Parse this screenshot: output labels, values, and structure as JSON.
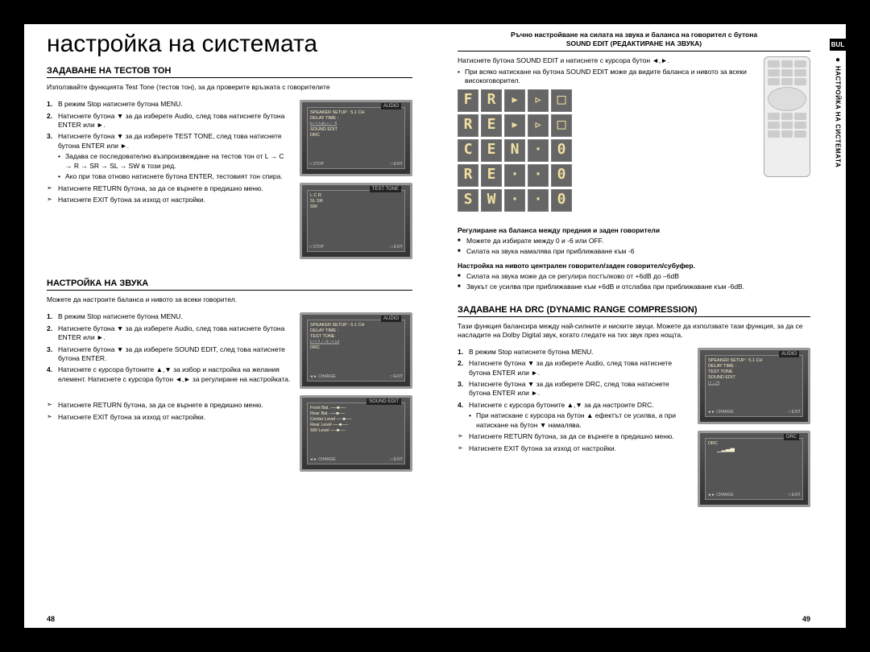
{
  "language_tab": "BUL",
  "side_label": "НАСТРОЙКА НА СИСТЕМАТА",
  "page_left_num": "48",
  "page_right_num": "49",
  "title": "настройка на системата",
  "sec1": {
    "heading": "ЗАДАВАНЕ НА ТЕСТОВ ТОН",
    "intro": "Използвайте функцията Test Tone (тестов тон), за да проверите връзката с говорителите",
    "s1": "В режим Stop натиснете бутона MENU.",
    "s2": "Натиснете бутона ▼ за да изберете Audio, след това натиснете бутона ENTER или ►.",
    "s3": "Натиснете бутона ▼ за да изберете TEST TONE, след това натиснете бутона ENTER или ►.",
    "b1": "Задава се последователно възпроизвеждане на тестов тон от L → C → R → SR → SL → SW в този ред.",
    "b2": "Ако при това отново натиснете бутона ENTER, тестовият тон спира.",
    "p1": "Натиснете RETURN бутона, за да се върнете в предишно меню.",
    "p2": "Натиснете EXIT бутона за изход от настройки.",
    "screen1": {
      "tab": "AUDIO",
      "lines": [
        "SPEAKER SETUP  : 5.1 CH",
        "DELAY TIME     :",
        "TEST TONE",
        "SOUND EDIT",
        "DRC"
      ],
      "hl": 2,
      "footL": "□ STOP",
      "footR": "□ EXIT"
    },
    "screen2": {
      "tab": "TEST TONE",
      "lines": [
        "L  C  R",
        "SL     SR",
        "   SW"
      ],
      "footL": "□ STOP",
      "footR": "□ EXIT"
    }
  },
  "sec2": {
    "heading": "НАСТРОЙКА НА ЗВУКА",
    "intro": "Можете да настроите баланса и нивото за всеки говорител.",
    "s1": "В режим Stop натиснете бутона MENU.",
    "s2": "Натиснете бутона ▼ за да изберете Audio, след това натиснете бутона ENTER или ►.",
    "s3": "Натиснете бутона ▼ за да изберете SOUND EDIT, след това натиснете бутона ENTER.",
    "s4": "Натиснете с курсора бутоните ▲,▼ за избор и настройка на желания елемент. Натиснете с курсора бутон ◄,► за регулиране на настройката.",
    "p1": "Натиснете RETURN бутона, за да се върнете в предишно меню.",
    "p2": "Натиснете EXIT бутона за изход от настройки.",
    "screen1": {
      "tab": "AUDIO",
      "lines": [
        "SPEAKER SETUP  : 5.1 CH",
        "DELAY TIME     :",
        "TEST TONE",
        "SOUND EDIT",
        "DRC"
      ],
      "hl": 3,
      "footL": "◄► CHANGE",
      "footR": "□ EXIT"
    },
    "screen2": {
      "tab": "SOUND EDIT",
      "lines": [
        "Front Bal.   ──■── ",
        "Rear Bal.    ──■── ",
        "Center Level ──■── ",
        "Rear Level   ──■── ",
        "SW  Level    ──■── "
      ],
      "footL": "◄► CHANGE",
      "footR": "□ EXIT"
    }
  },
  "right": {
    "top_note1": "Ръчно настройване на силата на звука и баланса на говорител с бутона",
    "top_note2": "SOUND EDIT (РЕДАКТИРАНЕ НА ЗВУКА)",
    "intro_line": "Натиснете бутона SOUND EDIT и натиснете с курсора бутон ◄,►.",
    "intro_b1": "При всяко натискане на бутона SOUND EDIT може да видите баланса и нивото за всеки високоговорител.",
    "segments": [
      [
        "F",
        "R",
        "▸",
        "▹",
        "□"
      ],
      [
        "R",
        "E",
        "▸",
        "▹",
        "□"
      ],
      [
        "C",
        "E",
        "N",
        "·",
        "0"
      ],
      [
        "R",
        "E",
        "·",
        "·",
        "0"
      ],
      [
        "S",
        "W",
        "·",
        "·",
        "0"
      ]
    ],
    "sub1_h": "Регулиране на баланса между предния и заден говорители",
    "sub1_a": "Можете да избирате между 0 и -6 или OFF.",
    "sub1_b": "Силата на звука намалява при приближаване към -6",
    "sub2_h": "Настройка на нивото централен говорител/заден говорител/субуфер.",
    "sub2_a": "Силата на звука може да се регулира постъпково от +6dB до –6dB",
    "sub2_b": "Звукът се усилва при приближаване към +6dB и отслабва при приближаване към -6dB."
  },
  "sec3": {
    "heading": "ЗАДАВАНЕ НА DRC (DYNAMIC RANGE COMPRESSION)",
    "intro": "Тази функция балансира между най-силните и ниските звуци. Можете да използвате тази функция, за да се насладите на Dolby Digital звук, когато гледате на тих звук през нощта.",
    "s1": "В режим Stop натиснете бутона MENU.",
    "s2": "Натиснете бутона ▼ за да изберете Audio, след това натиснете бутона ENTER или ►.",
    "s3": "Натиснете бутона ▼ за да изберете DRC, след това натиснете бутона ENTER или ►.",
    "s4": "Натиснете с курсора бутоните ▲,▼ за да настроите DRC.",
    "b1": "При натискане с курсора на бутон ▲ ефектът се усилва, а при натискане на бутон ▼ намалява.",
    "p1": "Натиснете RETURN бутона, за да се върнете в предишно меню.",
    "p2": "Натиснете EXIT бутона за изход от настройки.",
    "screen1": {
      "tab": "AUDIO",
      "lines": [
        "SPEAKER SETUP  : 5.1 CH",
        "DELAY TIME     :",
        "TEST TONE",
        "SOUND EDIT",
        "DRC"
      ],
      "hl": 4,
      "footL": "◄► CHANGE",
      "footR": "□ EXIT"
    },
    "screen2": {
      "tab": "DRC",
      "lines": [
        "DRC",
        "",
        "　　▁▃▅▇"
      ],
      "footL": "◄► CHANGE",
      "footR": "□ EXIT"
    }
  }
}
